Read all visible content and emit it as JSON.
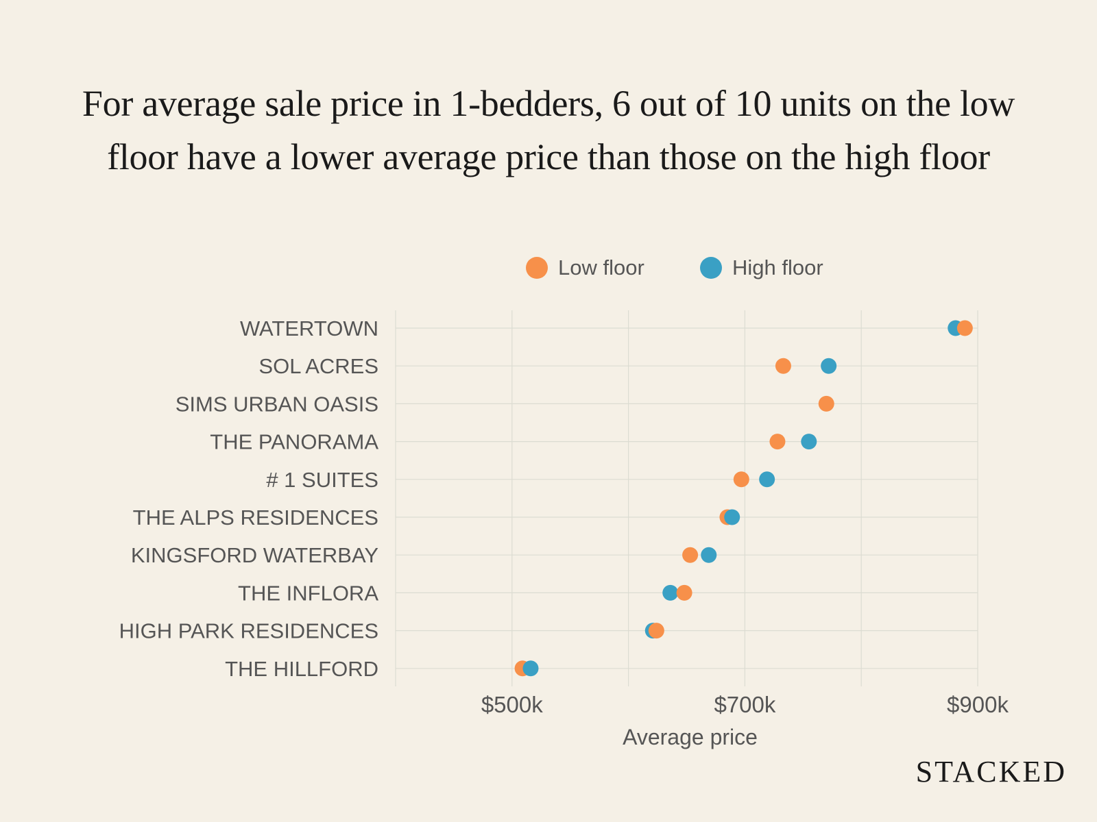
{
  "title": "For average sale price in 1-bedders, 6 out of 10 units on the low floor have a lower average price than those on the high floor",
  "brand": "STACKED",
  "colors": {
    "background": "#f5f0e6",
    "low_floor": "#f7904a",
    "high_floor": "#3aa0c4",
    "grid": "#dcdcd2",
    "label_text": "#555555"
  },
  "chart_data": {
    "type": "scatter",
    "subtype": "dot-plot",
    "orientation": "horizontal",
    "xlabel": "Average price",
    "ylabel": "",
    "xlim": [
      400,
      900
    ],
    "xticks": [
      500,
      700,
      900
    ],
    "xtick_labels": [
      "$500k",
      "$700k",
      "$900k"
    ],
    "grid": true,
    "legend_position": "top",
    "categories": [
      "WATERTOWN",
      "SOL ACRES",
      "SIMS URBAN OASIS",
      "THE PANORAMA",
      "# 1 SUITES",
      "THE ALPS RESIDENCES",
      "KINGSFORD WATERBAY",
      "THE INFLORA",
      "HIGH PARK RESIDENCES",
      "THE HILLFORD"
    ],
    "series": [
      {
        "name": "Low floor",
        "color": "#f7904a",
        "values": [
          889,
          733,
          770,
          728,
          697,
          685,
          653,
          648,
          624,
          509
        ]
      },
      {
        "name": "High floor",
        "color": "#3aa0c4",
        "values": [
          881,
          772,
          null,
          755,
          719,
          689,
          669,
          636,
          621,
          516
        ]
      }
    ]
  }
}
